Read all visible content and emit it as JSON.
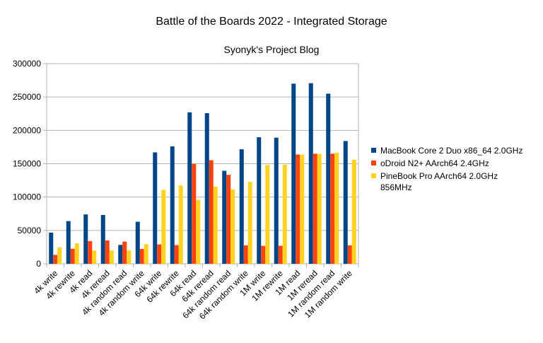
{
  "chart_data": {
    "type": "bar",
    "title": "Battle of the Boards 2022 - Integrated Storage",
    "subtitle": "Syonyk's Project Blog",
    "xlabel": "",
    "ylabel": "",
    "ylim": [
      0,
      300000
    ],
    "yticks": [
      0,
      50000,
      100000,
      150000,
      200000,
      250000,
      300000
    ],
    "ytick_labels": [
      "0",
      "50000",
      "100000",
      "150000",
      "200000",
      "250000",
      "300000"
    ],
    "grid": true,
    "legend_position": "right",
    "categories": [
      "4k write",
      "4k rewrite",
      "4k read",
      "4k reread",
      "4k random read",
      "4k random write",
      "64k write",
      "64k rewrite",
      "64k read",
      "64k reread",
      "64k random read",
      "64k random write",
      "1M write",
      "1M rewrite",
      "1M read",
      "1M reread",
      "1M random read",
      "1M random write"
    ],
    "series": [
      {
        "name": "MacBook Core 2 Duo x86_64 2.0GHz",
        "legend_lines": [
          "MacBook Core 2 Duo x86_64 2.0GHz"
        ],
        "color": "#004586",
        "values": [
          46700,
          64000,
          74000,
          73200,
          28300,
          63000,
          167000,
          176000,
          227000,
          225800,
          139400,
          171600,
          189700,
          189000,
          270000,
          270700,
          255000,
          184000
        ]
      },
      {
        "name": "oDroid N2+ AArch64 2.4GHz",
        "legend_lines": [
          "oDroid N2+ AArch64 2.4GHz"
        ],
        "color": "#ff420e",
        "values": [
          13400,
          22600,
          34000,
          35000,
          33300,
          22300,
          29000,
          28000,
          149700,
          155300,
          133400,
          27600,
          26900,
          27000,
          163800,
          165000,
          165000,
          27600
        ]
      },
      {
        "name": "PineBook Pro AArch64 2.0GHz 856MHz",
        "legend_lines": [
          "PineBook Pro AArch64 2.0GHz",
          "856MHz"
        ],
        "color": "#ffd320",
        "values": [
          24800,
          30800,
          19800,
          20200,
          20200,
          29400,
          110800,
          117500,
          95900,
          115700,
          111500,
          122800,
          148300,
          148600,
          163500,
          164500,
          166700,
          156000
        ]
      }
    ]
  }
}
